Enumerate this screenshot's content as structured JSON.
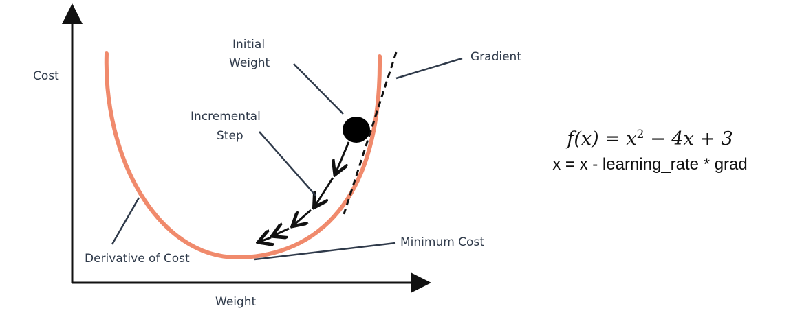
{
  "labels": {
    "y_axis": "Cost",
    "x_axis": "Weight",
    "initial_weight_line1": "Initial",
    "initial_weight_line2": "Weight",
    "incremental_step_line1": "Incremental",
    "incremental_step_line2": "Step",
    "gradient": "Gradient",
    "minimum_cost": "Minimum Cost",
    "derivative_of_cost": "Derivative of Cost"
  },
  "equations": {
    "function_lhs": "f(x) = x",
    "function_exponent": "2",
    "function_rhs": " − 4x + 3",
    "update_rule": "x = x - learning_rate * grad"
  },
  "colors": {
    "curve": "#f08a6c",
    "axis": "#111111",
    "pointer": "#2f3a4a",
    "text": "#2f3a4a"
  }
}
